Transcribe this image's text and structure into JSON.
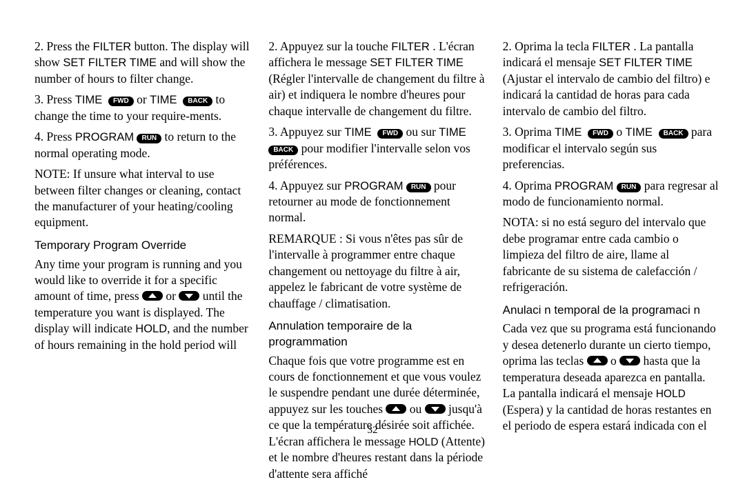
{
  "pageNumber": "32",
  "labels": {
    "fwd": "FWD",
    "back": "BACK",
    "run": "RUN",
    "filter": "FILTER",
    "setFilterTime": "SET FILTER TIME",
    "time": "TIME",
    "program": "PROGRAM",
    "hold": "HOLD"
  },
  "en": {
    "p1a": "2. Press the ",
    "p1b": "  button. The display will show ",
    "p1c": " and will show the number of hours to filter change.",
    "p2a": "3. Press ",
    "p2b": " or ",
    "p2c": " to change the time to your require-ments.",
    "p3a": "4. Press ",
    "p3b": " to return to the normal operating mode.",
    "note": "NOTE: If unsure what interval to use between filter changes or cleaning, contact the manufacturer of your heating/cooling equipment.",
    "heading": "Temporary Program Override",
    "p4a": "Any time your program is running and you would like to override it for a specific amount of time, press ",
    "p4b": " or ",
    "p4c": " until the temperature you want is displayed. The display will indicate ",
    "p4d": ", and the number of hours remaining in the hold period will"
  },
  "fr": {
    "p1a": "2. Appuyez sur la touche ",
    "p1b": " . L'écran affichera le message ",
    "p1c": " (Régler l'intervalle de changement du filtre à air) et indiquera le nombre d'heures pour chaque intervalle de changement du filtre.",
    "p2a": "3. Appuyez sur ",
    "p2b": " ou sur ",
    "p2c": " pour modifier l'intervalle selon vos préférences.",
    "p3a": "4. Appuyez sur ",
    "p3b": " pour retourner au mode de fonctionnement normal.",
    "note": "REMARQUE : Si vous n'êtes pas sûr de l'intervalle à programmer entre chaque changement ou nettoyage du filtre à air, appelez le fabricant de votre système de chauffage / climatisation.",
    "heading": "Annulation temporaire de la programmation",
    "p4a": "Chaque fois que votre programme est en cours de fonctionnement et que vous voulez le suspendre pendant une durée déterminée, appuyez sur les touches ",
    "p4b": " ou ",
    "p4c": " jusqu'à ce que la température désirée soit affichée. L'écran affichera le message ",
    "p4d": " (Attente) et le nombre d'heures restant dans la période d'attente sera affiché"
  },
  "es": {
    "p1a": "2. Oprima la tecla ",
    "p1b": " . La pantalla indicará el mensaje ",
    "p1c": " (Ajustar el intervalo de cambio del filtro) e indicará la cantidad de horas para cada intervalo de cambio del filtro.",
    "p2a": "3. Oprima ",
    "p2b": " o ",
    "p2c": " para modificar el intervalo según sus preferencias.",
    "p3a": "4. Oprima ",
    "p3b": " para regresar al modo de funcionamiento normal.",
    "note": "NOTA: si no está seguro del intervalo que debe programar entre cada cambio o limpieza del filtro de aire, llame al fabricante de su sistema de calefacción / refrigeración.",
    "heading": "Anulaci n temporal de la programaci n",
    "p4a": "Cada vez que su programa está funcionando y desea detenerlo durante un cierto tiempo, oprima las teclas ",
    "p4b": " o ",
    "p4c": " hasta que la temperatura deseada aparezca en pantalla. La pantalla indicará el mensaje ",
    "p4d": " (Espera) y la cantidad de horas restantes en el periodo de espera estará indicada con el"
  }
}
